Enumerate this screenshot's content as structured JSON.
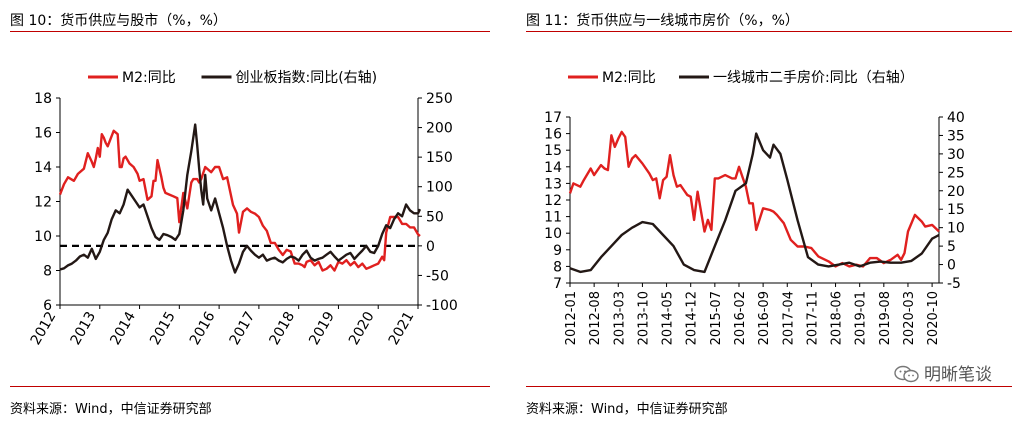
{
  "left": {
    "title": "图 10：货币供应与股市（%，%）",
    "source": "资料来源：Wind，中信证券研究部"
  },
  "right": {
    "title": "图 11：货币供应与一线城市房价（%，%）",
    "source": "资料来源：Wind，中信证券研究部"
  },
  "watermark": {
    "text": "明晰笔谈",
    "icon": "wechat-icon"
  },
  "colors": {
    "rule": "#c00000",
    "m2": "#e0201f",
    "black": "#231815"
  },
  "chart_data": [
    {
      "type": "line",
      "title": "",
      "xlabel": "",
      "x_ticks": [
        "2012",
        "2013",
        "2014",
        "2015",
        "2016",
        "2017",
        "2018",
        "2019",
        "2020",
        "2021"
      ],
      "x_range": [
        2012,
        2021
      ],
      "ylim": [
        6,
        18
      ],
      "y_ticks": [
        "18",
        "16",
        "14",
        "12",
        "10",
        "8",
        "6"
      ],
      "y2lim": [
        -100,
        250
      ],
      "y2_ticks": [
        "250",
        "200",
        "150",
        "100",
        "50",
        "0",
        "-50",
        "-100"
      ],
      "legend": {
        "placement": "top",
        "entries": [
          "M2:同比",
          "创业板指数:同比(右轴)"
        ]
      },
      "reference_line": {
        "axis": "right",
        "value": 0,
        "style": "dashed"
      },
      "grid": false,
      "series": [
        {
          "name": "M2:同比",
          "axis": "left",
          "x": [
            2012.0,
            2012.1,
            2012.2,
            2012.35,
            2012.45,
            2012.6,
            2012.7,
            2012.8,
            2012.85,
            2012.9,
            2012.95,
            2013.0,
            2013.05,
            2013.1,
            2013.15,
            2013.2,
            2013.3,
            2013.35,
            2013.45,
            2013.5,
            2013.55,
            2013.6,
            2013.65,
            2013.75,
            2013.85,
            2013.95,
            2014.0,
            2014.1,
            2014.2,
            2014.3,
            2014.35,
            2014.4,
            2014.45,
            2014.55,
            2014.6,
            2014.65,
            2014.75,
            2014.85,
            2014.95,
            2015.0,
            2015.1,
            2015.2,
            2015.3,
            2015.35,
            2015.45,
            2015.5,
            2015.55,
            2015.65,
            2015.8,
            2015.9,
            2016.0,
            2016.1,
            2016.2,
            2016.35,
            2016.45,
            2016.5,
            2016.6,
            2016.7,
            2016.8,
            2016.9,
            2017.0,
            2017.1,
            2017.2,
            2017.3,
            2017.4,
            2017.5,
            2017.6,
            2017.7,
            2017.8,
            2017.9,
            2018.0,
            2018.1,
            2018.15,
            2018.2,
            2018.3,
            2018.4,
            2018.5,
            2018.6,
            2018.7,
            2018.8,
            2018.9,
            2019.0,
            2019.1,
            2019.2,
            2019.3,
            2019.4,
            2019.5,
            2019.6,
            2019.7,
            2019.8,
            2019.9,
            2020.0,
            2020.1,
            2020.15,
            2020.2,
            2020.3,
            2020.4,
            2020.5,
            2020.6,
            2020.7,
            2020.8,
            2020.9,
            2021.0,
            2021.05
          ],
          "values": [
            12.4,
            13.0,
            13.4,
            13.2,
            13.6,
            13.9,
            14.8,
            14.3,
            14.0,
            14.5,
            15.1,
            14.6,
            15.9,
            15.7,
            15.4,
            15.2,
            15.8,
            16.1,
            15.9,
            14.0,
            14.0,
            14.5,
            14.6,
            14.2,
            14.0,
            13.6,
            13.2,
            13.3,
            12.1,
            12.3,
            13.2,
            13.2,
            14.4,
            13.4,
            12.8,
            12.5,
            12.4,
            12.3,
            12.2,
            10.8,
            12.5,
            11.6,
            13.1,
            13.3,
            13.3,
            13.1,
            13.3,
            14.0,
            13.7,
            14.0,
            14.0,
            13.3,
            13.4,
            11.8,
            11.3,
            10.2,
            11.4,
            11.6,
            11.4,
            11.3,
            11.1,
            10.6,
            10.3,
            9.6,
            9.6,
            9.2,
            8.9,
            9.2,
            9.1,
            8.4,
            8.4,
            8.3,
            8.2,
            8.5,
            8.6,
            8.3,
            8.5,
            8.0,
            8.1,
            8.3,
            8.0,
            8.5,
            8.4,
            8.6,
            8.3,
            8.5,
            8.2,
            8.4,
            8.1,
            8.2,
            8.3,
            8.4,
            8.8,
            8.6,
            10.2,
            11.1,
            11.1,
            11.1,
            10.7,
            10.7,
            10.5,
            10.5,
            10.1,
            10.0
          ]
        },
        {
          "name": "创业板指数:同比(右轴)",
          "axis": "right",
          "x": [
            2012.0,
            2012.1,
            2012.2,
            2012.3,
            2012.4,
            2012.5,
            2012.6,
            2012.7,
            2012.8,
            2012.9,
            2013.0,
            2013.1,
            2013.2,
            2013.3,
            2013.4,
            2013.5,
            2013.6,
            2013.7,
            2013.8,
            2013.9,
            2014.0,
            2014.1,
            2014.2,
            2014.3,
            2014.4,
            2014.5,
            2014.6,
            2014.7,
            2014.8,
            2014.9,
            2015.0,
            2015.1,
            2015.2,
            2015.3,
            2015.4,
            2015.45,
            2015.5,
            2015.55,
            2015.6,
            2015.65,
            2015.7,
            2015.8,
            2015.9,
            2016.0,
            2016.1,
            2016.2,
            2016.3,
            2016.4,
            2016.5,
            2016.6,
            2016.7,
            2016.8,
            2016.9,
            2017.0,
            2017.1,
            2017.2,
            2017.3,
            2017.4,
            2017.5,
            2017.6,
            2017.7,
            2017.8,
            2017.9,
            2018.0,
            2018.1,
            2018.2,
            2018.3,
            2018.4,
            2018.5,
            2018.6,
            2018.7,
            2018.8,
            2018.9,
            2019.0,
            2019.1,
            2019.2,
            2019.3,
            2019.4,
            2019.5,
            2019.6,
            2019.7,
            2019.8,
            2019.9,
            2020.0,
            2020.1,
            2020.2,
            2020.3,
            2020.4,
            2020.5,
            2020.6,
            2020.7,
            2020.8,
            2020.9,
            2021.0,
            2021.05
          ],
          "values": [
            -40,
            -38,
            -33,
            -30,
            -25,
            -18,
            -15,
            -20,
            -5,
            -22,
            -10,
            10,
            22,
            45,
            60,
            55,
            70,
            95,
            85,
            75,
            65,
            70,
            50,
            30,
            15,
            10,
            20,
            18,
            15,
            10,
            20,
            60,
            120,
            160,
            205,
            170,
            130,
            95,
            70,
            120,
            80,
            60,
            80,
            55,
            30,
            0,
            -25,
            -45,
            -30,
            -10,
            0,
            -8,
            -15,
            -20,
            -15,
            -25,
            -22,
            -20,
            -25,
            -28,
            -22,
            -18,
            -20,
            -25,
            -15,
            -8,
            -20,
            -25,
            -22,
            -20,
            -15,
            -10,
            -18,
            -25,
            -20,
            -15,
            -12,
            -22,
            -15,
            -8,
            0,
            -10,
            -12,
            0,
            20,
            35,
            30,
            45,
            55,
            50,
            70,
            60,
            55,
            55,
            62
          ]
        }
      ]
    },
    {
      "type": "line",
      "title": "",
      "xlabel": "",
      "x_ticks": [
        "2012-01",
        "2012-08",
        "2013-03",
        "2013-10",
        "2014-05",
        "2014-12",
        "2015-07",
        "2016-02",
        "2016-09",
        "2017-04",
        "2017-11",
        "2018-06",
        "2019-01",
        "2019-08",
        "2020-03",
        "2020-10"
      ],
      "x_range": [
        "2012-01",
        "2020-12"
      ],
      "ylim": [
        7,
        17
      ],
      "y_ticks": [
        "17",
        "16",
        "15",
        "14",
        "13",
        "12",
        "11",
        "10",
        "9",
        "8",
        "7"
      ],
      "y2lim": [
        -5,
        40
      ],
      "y2_ticks": [
        "40",
        "35",
        "30",
        "25",
        "20",
        "15",
        "10",
        "5",
        "0",
        "-5"
      ],
      "legend": {
        "placement": "top",
        "entries": [
          "M2:同比",
          "一线城市二手房价:同比（右轴）"
        ]
      },
      "grid": false,
      "series": [
        {
          "name": "M2:同比",
          "axis": "left",
          "x": [
            "2012-01",
            "2012-02",
            "2012-04",
            "2012-05",
            "2012-07",
            "2012-08",
            "2012-10",
            "2012-11",
            "2012-12",
            "2013-01",
            "2013-02",
            "2013-03",
            "2013-04",
            "2013-05",
            "2013-06",
            "2013-07",
            "2013-08",
            "2013-10",
            "2013-12",
            "2014-01",
            "2014-02",
            "2014-03",
            "2014-04",
            "2014-05",
            "2014-06",
            "2014-07",
            "2014-08",
            "2014-09",
            "2014-10",
            "2014-11",
            "2014-12",
            "2015-01",
            "2015-02",
            "2015-04",
            "2015-05",
            "2015-06",
            "2015-07",
            "2015-08",
            "2015-10",
            "2015-12",
            "2016-01",
            "2016-02",
            "2016-03",
            "2016-04",
            "2016-05",
            "2016-06",
            "2016-07",
            "2016-09",
            "2016-11",
            "2016-12",
            "2017-01",
            "2017-03",
            "2017-05",
            "2017-07",
            "2017-09",
            "2017-11",
            "2018-01",
            "2018-04",
            "2018-06",
            "2018-08",
            "2018-10",
            "2018-12",
            "2019-02",
            "2019-04",
            "2019-06",
            "2019-08",
            "2019-10",
            "2019-12",
            "2020-01",
            "2020-02",
            "2020-03",
            "2020-05",
            "2020-07",
            "2020-08",
            "2020-10",
            "2020-12"
          ],
          "values": [
            12.4,
            13.0,
            12.8,
            13.2,
            13.9,
            13.5,
            14.1,
            13.9,
            13.8,
            15.9,
            15.2,
            15.7,
            16.1,
            15.8,
            14.0,
            14.5,
            14.7,
            14.2,
            13.6,
            13.2,
            13.3,
            12.1,
            13.2,
            13.4,
            14.7,
            13.5,
            12.8,
            12.9,
            12.6,
            12.3,
            12.2,
            10.8,
            12.5,
            10.1,
            10.8,
            10.2,
            13.3,
            13.3,
            13.5,
            13.3,
            13.3,
            14.0,
            13.4,
            12.8,
            11.8,
            11.8,
            10.2,
            11.5,
            11.4,
            11.3,
            11.1,
            10.6,
            9.6,
            9.2,
            9.2,
            9.1,
            8.6,
            8.3,
            8.0,
            8.2,
            8.0,
            8.1,
            8.0,
            8.5,
            8.5,
            8.2,
            8.4,
            8.7,
            8.4,
            8.8,
            10.1,
            11.1,
            10.7,
            10.4,
            10.5,
            10.1
          ]
        },
        {
          "name": "一线城市二手房价:同比（右轴）",
          "axis": "right",
          "x": [
            "2012-01",
            "2012-04",
            "2012-07",
            "2012-10",
            "2013-01",
            "2013-04",
            "2013-07",
            "2013-10",
            "2014-01",
            "2014-04",
            "2014-07",
            "2014-10",
            "2015-01",
            "2015-04",
            "2015-07",
            "2015-10",
            "2016-01",
            "2016-04",
            "2016-06",
            "2016-07",
            "2016-09",
            "2016-11",
            "2016-12",
            "2017-02",
            "2017-04",
            "2017-07",
            "2017-10",
            "2018-01",
            "2018-04",
            "2018-07",
            "2018-10",
            "2019-01",
            "2019-04",
            "2019-07",
            "2019-10",
            "2020-01",
            "2020-04",
            "2020-07",
            "2020-10",
            "2020-12"
          ],
          "values": [
            -1,
            -2,
            -1.5,
            2,
            5,
            8,
            10,
            11.5,
            11,
            8,
            5,
            0,
            -1.5,
            -2,
            5,
            12,
            20,
            22,
            30,
            35.5,
            31,
            29,
            32.5,
            30,
            23,
            12,
            2,
            0,
            -0.5,
            0,
            0.5,
            -0.5,
            0.5,
            0.8,
            0.5,
            0.5,
            1,
            3,
            7,
            8
          ]
        }
      ]
    }
  ]
}
